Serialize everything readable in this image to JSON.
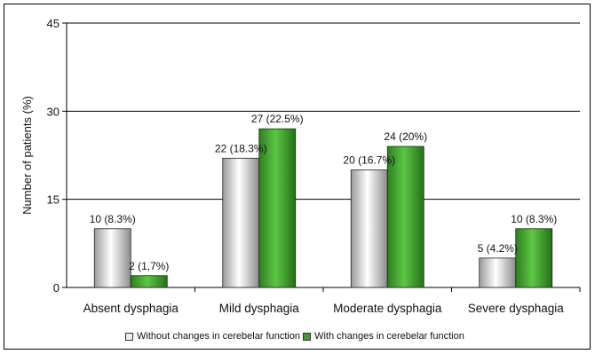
{
  "chart_data": {
    "type": "bar",
    "title": "",
    "xlabel": "",
    "ylabel": "Number of patients (%)",
    "ylim": [
      0,
      45
    ],
    "yticks": [
      0,
      15,
      30,
      45
    ],
    "grid": true,
    "legend_position": "bottom",
    "categories": [
      "Absent dysphagia",
      "Mild dysphagia",
      "Moderate dysphagia",
      "Severe dysphagia"
    ],
    "series": [
      {
        "name": "Without changes in cerebelar function",
        "color": "#e6e6e6",
        "values": [
          10,
          22,
          20,
          5
        ],
        "labels": [
          "10 (8.3%)",
          "22 (18.3%)",
          "20 (16.7%)",
          "5 (4.2%)"
        ]
      },
      {
        "name": "With changes in cerebelar function",
        "color": "#3aa02a",
        "values": [
          2,
          27,
          24,
          10
        ],
        "labels": [
          "2 (1,7%)",
          "27 (22.5%)",
          "24 (20%)",
          "10 (8.3%)"
        ]
      }
    ]
  }
}
